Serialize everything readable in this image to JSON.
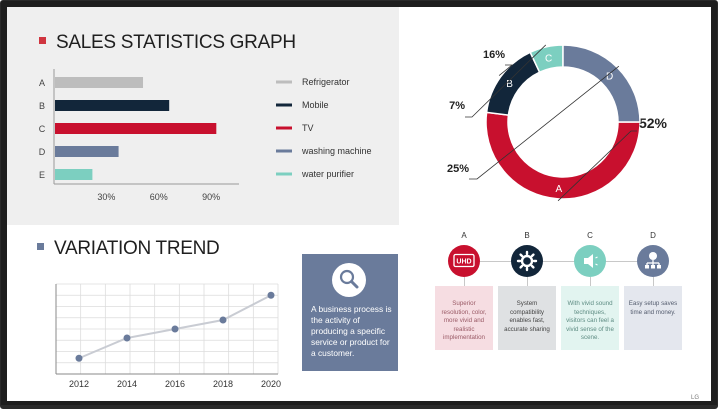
{
  "sales": {
    "title": "SALES STATISTICS GRAPH",
    "title_marker_color": "#d0353f"
  },
  "trend": {
    "title": "VARIATION TREND",
    "title_marker_color": "#6a7b9b"
  },
  "business_box": {
    "text": "A business process is the activity of producing a specific service or product for a customer.",
    "icon": "magnifier-icon"
  },
  "features": [
    {
      "letter": "A",
      "icon": "uhd-icon",
      "icon_text": "UHD",
      "color": "#c8102e",
      "box_color": "#f6dde2",
      "box_text_color": "#9a5a66",
      "text": "Superior resolution, color, more vivid and realistic implementation"
    },
    {
      "letter": "B",
      "icon": "gear-icon",
      "icon_text": "",
      "color": "#12263a",
      "box_color": "#dfe1e3",
      "box_text_color": "#444444",
      "text": "System compatibility enables fast, accurate sharing"
    },
    {
      "letter": "C",
      "icon": "speaker-icon",
      "icon_text": "",
      "color": "#7ccfc0",
      "box_color": "#e2f4f0",
      "box_text_color": "#5e8c83",
      "text": "With vivid sound techniques, visitors can feel a vivid sense of the scene."
    },
    {
      "letter": "D",
      "icon": "network-icon",
      "icon_text": "",
      "color": "#6a7b9b",
      "box_color": "#e4e7ee",
      "box_text_color": "#555d6f",
      "text": "Easy setup saves time and money."
    }
  ],
  "brand": "LG",
  "chart_data": [
    {
      "type": "bar",
      "orientation": "horizontal",
      "title": "SALES STATISTICS GRAPH",
      "categories": [
        "A",
        "B",
        "C",
        "D",
        "E"
      ],
      "values": [
        51,
        66,
        93,
        37,
        22
      ],
      "colors": [
        "#bdbdbd",
        "#12263a",
        "#c8102e",
        "#6a7b9b",
        "#7ccfc0"
      ],
      "xticks": [
        "30%",
        "60%",
        "90%"
      ],
      "xtick_values": [
        30,
        60,
        90
      ],
      "xlim": [
        0,
        106
      ],
      "legend": [
        "Refrigerator",
        "Mobile",
        "TV",
        "washing machine",
        "water purifier"
      ],
      "legend_placement": "right",
      "grid": false
    },
    {
      "type": "pie",
      "variant": "donut",
      "labels": [
        "A",
        "B",
        "C",
        "D"
      ],
      "values": [
        52,
        16,
        7,
        25
      ],
      "percent_labels": [
        "52%",
        "16%",
        "7%",
        "25%"
      ],
      "colors": [
        "#c8102e",
        "#12263a",
        "#7ccfc0",
        "#6a7b9b"
      ]
    },
    {
      "type": "line",
      "title": "VARIATION TREND",
      "x": [
        "2012",
        "2014",
        "2016",
        "2018",
        "2020"
      ],
      "y": [
        14,
        32,
        40,
        48,
        70
      ],
      "ylim": [
        0,
        80
      ],
      "grid": true,
      "color": "#6a7b9b"
    }
  ]
}
